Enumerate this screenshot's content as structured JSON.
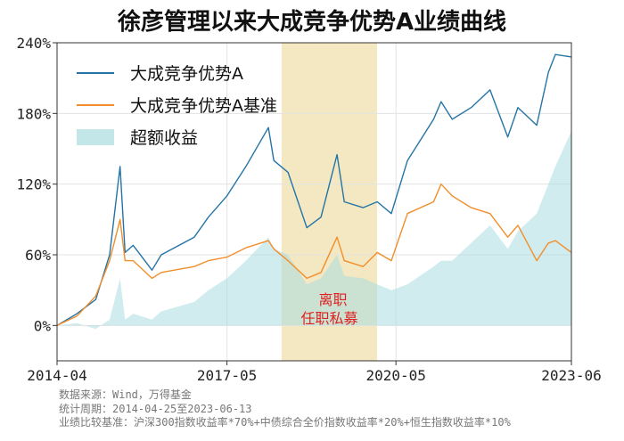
{
  "chart_data": {
    "type": "line",
    "title": "徐彦管理以来大成竞争优势A业绩曲线",
    "y_ticks": [
      "240%",
      "180%",
      "120%",
      "60%",
      "0%"
    ],
    "y_tick_values": [
      240,
      180,
      120,
      60,
      0
    ],
    "ylim": [
      -30,
      240
    ],
    "x_ticks": [
      "2014-04",
      "2017-05",
      "2020-05",
      "2023-06"
    ],
    "x_tick_values": [
      "2014-04-25",
      "2017-05-01",
      "2020-05-01",
      "2023-06-13"
    ],
    "xlim": [
      "2014-04-25",
      "2023-06-13"
    ],
    "grid": true,
    "legend_position": "top-left",
    "highlight_band": {
      "start": "2018-04-20",
      "end": "2019-12-31",
      "label_line1": "离职",
      "label_line2": "任职私募",
      "color": "#f3e8c2"
    },
    "series": [
      {
        "name": "大成竞争优势A",
        "color": "#2474a6",
        "x": [
          "2014-04-25",
          "2014-09-01",
          "2015-01-01",
          "2015-04-01",
          "2015-06-08",
          "2015-07-10",
          "2015-09-01",
          "2016-01-01",
          "2016-03-01",
          "2016-10-01",
          "2017-01-01",
          "2017-05-01",
          "2017-09-01",
          "2018-01-25",
          "2018-03-01",
          "2018-06-01",
          "2018-10-01",
          "2019-01-01",
          "2019-04-15",
          "2019-06-01",
          "2019-10-01",
          "2020-01-01",
          "2020-04-01",
          "2020-07-15",
          "2020-12-31",
          "2021-02-18",
          "2021-05-01",
          "2021-09-01",
          "2022-01-01",
          "2022-04-26",
          "2022-07-01",
          "2022-10-31",
          "2023-01-15",
          "2023-03-01",
          "2023-06-13"
        ],
        "values": [
          0,
          10,
          22,
          60,
          135,
          62,
          68,
          47,
          60,
          75,
          92,
          110,
          135,
          168,
          140,
          130,
          83,
          92,
          145,
          105,
          100,
          105,
          95,
          140,
          175,
          190,
          175,
          185,
          200,
          160,
          185,
          170,
          215,
          230,
          228
        ]
      },
      {
        "name": "大成竞争优势A基准",
        "color": "#f28e2b",
        "x": [
          "2014-04-25",
          "2014-09-01",
          "2015-01-01",
          "2015-04-01",
          "2015-06-08",
          "2015-07-10",
          "2015-09-01",
          "2016-01-01",
          "2016-03-01",
          "2016-10-01",
          "2017-01-01",
          "2017-05-01",
          "2017-09-01",
          "2018-01-25",
          "2018-03-01",
          "2018-06-01",
          "2018-10-01",
          "2019-01-01",
          "2019-04-15",
          "2019-06-01",
          "2019-10-01",
          "2020-01-01",
          "2020-04-01",
          "2020-07-15",
          "2020-12-31",
          "2021-02-18",
          "2021-05-01",
          "2021-09-01",
          "2022-01-01",
          "2022-04-26",
          "2022-07-01",
          "2022-10-31",
          "2023-01-15",
          "2023-03-01",
          "2023-06-13"
        ],
        "values": [
          0,
          8,
          25,
          55,
          90,
          55,
          55,
          40,
          45,
          50,
          55,
          58,
          66,
          72,
          65,
          55,
          40,
          45,
          75,
          55,
          50,
          62,
          55,
          95,
          105,
          120,
          110,
          100,
          95,
          75,
          85,
          55,
          70,
          72,
          62
        ]
      },
      {
        "name": "超额收益",
        "color": "#a9dde0",
        "type": "area",
        "x": [
          "2014-04-25",
          "2014-09-01",
          "2015-01-01",
          "2015-04-01",
          "2015-06-08",
          "2015-07-10",
          "2015-09-01",
          "2016-01-01",
          "2016-03-01",
          "2016-10-01",
          "2017-01-01",
          "2017-05-01",
          "2017-09-01",
          "2018-01-25",
          "2018-03-01",
          "2018-06-01",
          "2018-10-01",
          "2019-01-01",
          "2019-04-15",
          "2019-06-01",
          "2019-10-01",
          "2020-01-01",
          "2020-04-01",
          "2020-07-15",
          "2020-12-31",
          "2021-02-18",
          "2021-05-01",
          "2021-09-01",
          "2022-01-01",
          "2022-04-26",
          "2022-07-01",
          "2022-10-31",
          "2023-01-15",
          "2023-03-01",
          "2023-06-13"
        ],
        "values": [
          0,
          2,
          -3,
          5,
          40,
          5,
          10,
          5,
          12,
          20,
          30,
          40,
          55,
          75,
          65,
          60,
          35,
          40,
          60,
          42,
          40,
          35,
          30,
          35,
          50,
          55,
          55,
          70,
          85,
          65,
          80,
          95,
          120,
          135,
          165
        ]
      }
    ]
  },
  "footer": {
    "line1": "数据来源：Wind，万得基金",
    "line2": "统计周期：2014-04-25至2023-06-13",
    "line3": "业绩比较基准：沪深300指数收益率*70%+中债综合全价指数收益率*20%+恒生指数收益率*10%"
  }
}
